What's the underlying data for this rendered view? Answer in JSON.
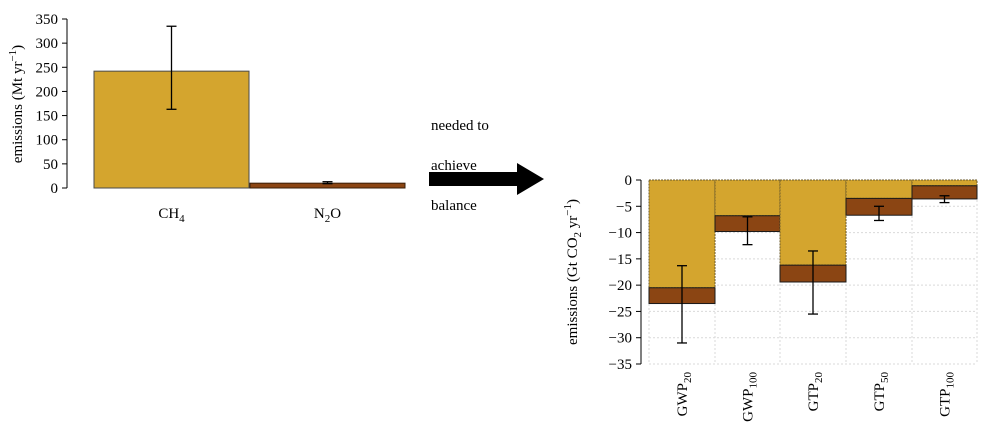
{
  "colors": {
    "ch4": "#D4A52E",
    "n2o": "#8B4513",
    "grid": "#d9d9d9",
    "axis": "#000000"
  },
  "annotation": {
    "text_lines": [
      "needed to",
      "achieve",
      "balance"
    ]
  },
  "chart_data": [
    {
      "type": "bar",
      "categories": [
        "CH4",
        "N2O"
      ],
      "category_labels": [
        {
          "base": "CH",
          "sub": "4",
          "rest": ""
        },
        {
          "base": "N",
          "sub": "2",
          "rest": "O"
        }
      ],
      "values": [
        242,
        10
      ],
      "error_low": [
        163,
        9
      ],
      "error_high": [
        335,
        13
      ],
      "ylabel": {
        "text": "emissions (Mt yr",
        "sup": "−1",
        "close": ")"
      },
      "ylim": [
        0,
        350
      ],
      "yticks": [
        0,
        50,
        100,
        150,
        200,
        250,
        300,
        350
      ],
      "grid": false
    },
    {
      "type": "bar",
      "stacked": true,
      "categories": [
        "GWP20",
        "GWP100",
        "GTP20",
        "GTP50",
        "GTP100"
      ],
      "category_labels": [
        {
          "base": "GWP",
          "sub": "20"
        },
        {
          "base": "GWP",
          "sub": "100"
        },
        {
          "base": "GTP",
          "sub": "20"
        },
        {
          "base": "GTP",
          "sub": "50"
        },
        {
          "base": "GTP",
          "sub": "100"
        }
      ],
      "series": [
        {
          "name": "CH4",
          "values": [
            -20.5,
            -6.8,
            -16.2,
            -3.5,
            -1.1
          ]
        },
        {
          "name": "N2O",
          "values": [
            -3.0,
            -3.0,
            -3.2,
            -3.2,
            -2.5
          ]
        }
      ],
      "error_low": [
        -31.0,
        -12.3,
        -25.5,
        -7.7,
        -4.3
      ],
      "error_high": [
        -16.3,
        -7.0,
        -13.5,
        -5.0,
        -3.0
      ],
      "ylabel": {
        "text": "emissions (Gt CO",
        "sub": "2",
        "mid": " yr",
        "sup": "−1",
        "close": ")"
      },
      "ylim": [
        -35,
        0
      ],
      "yticks": [
        0,
        -5,
        -10,
        -15,
        -20,
        -25,
        -30,
        -35
      ],
      "grid": true
    }
  ]
}
